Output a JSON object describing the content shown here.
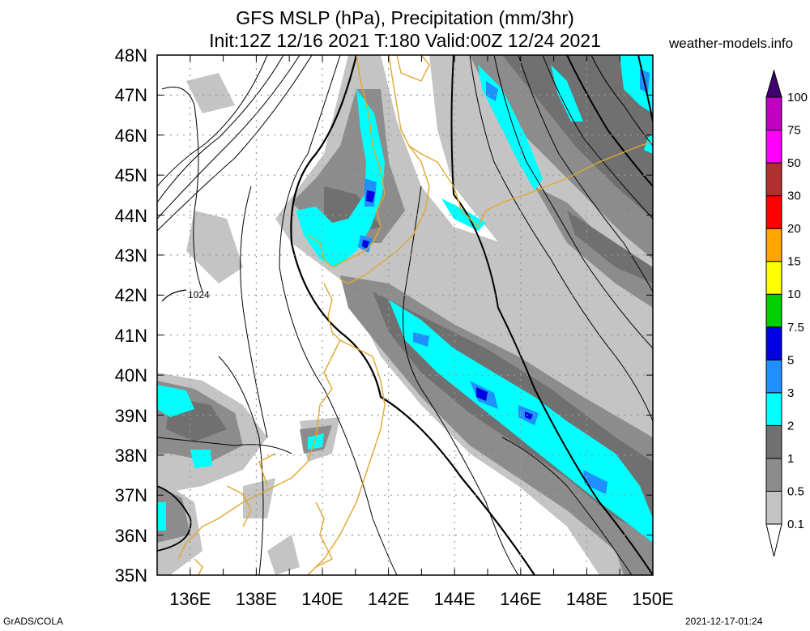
{
  "header": {
    "title_line1": "GFS MSLP (hPa), Precipitation (mm/3hr)",
    "title_line2": "Init:12Z 12/16 2021 T:180 Valid:00Z 12/24 2021",
    "site": "weather-models.info"
  },
  "footer": {
    "left": "GrADS/COLA",
    "right": "2021-12-17-01:24"
  },
  "map": {
    "lon_range": [
      135,
      150
    ],
    "lat_range": [
      35,
      48
    ],
    "lat_labels": [
      "48N",
      "47N",
      "46N",
      "45N",
      "44N",
      "43N",
      "42N",
      "41N",
      "40N",
      "39N",
      "38N",
      "37N",
      "36N",
      "35N"
    ],
    "lon_labels": [
      "136E",
      "138E",
      "140E",
      "142E",
      "144E",
      "146E",
      "148E",
      "150E"
    ],
    "isobar_labels": [
      {
        "text": "1024",
        "lon": 136.1,
        "lat": 42.0
      }
    ]
  },
  "colorbar": {
    "levels": [
      "0.1",
      "0.5",
      "1",
      "2",
      "3",
      "5",
      "7.5",
      "10",
      "15",
      "20",
      "30",
      "50",
      "75",
      "100"
    ],
    "colors": [
      "#c4c4c4",
      "#8c8c8c",
      "#707070",
      "#00ffff",
      "#1e90ff",
      "#0000e0",
      "#00d000",
      "#ffff00",
      "#ffa500",
      "#ff0000",
      "#b03030",
      "#ff00ff",
      "#c000c0",
      "#8000a0",
      "#400070"
    ]
  }
}
